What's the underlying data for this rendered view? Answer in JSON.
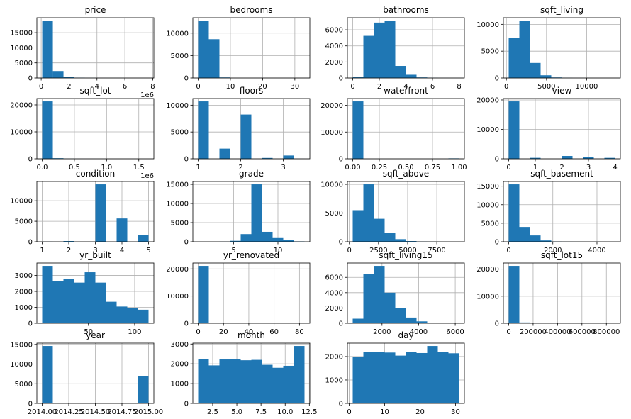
{
  "colors": {
    "bar": "#1f77b4",
    "grid": "#b0b0b0",
    "background": "#ffffff"
  },
  "chart_data": [
    {
      "type": "bar",
      "title": "price",
      "grid": true,
      "bins": {
        "min": 0.075,
        "max": 7.7,
        "count": 10
      },
      "values": [
        19000,
        2300,
        350,
        90,
        25,
        10,
        5,
        3,
        1,
        1
      ],
      "xlim": [
        -0.31,
        8.08
      ],
      "ylim": [
        0,
        19950
      ],
      "xticks": [
        0,
        2,
        4,
        6,
        8
      ],
      "xticklabels": [
        "0",
        "2",
        "4",
        "6",
        "8"
      ],
      "yticks": [
        0,
        5000,
        10000,
        15000
      ],
      "yticklabels": [
        "0",
        "5000",
        "10000",
        "15000"
      ],
      "offset_text": "1e6"
    },
    {
      "type": "bar",
      "title": "bedrooms",
      "grid": true,
      "bins": {
        "min": 0,
        "max": 33,
        "count": 10
      },
      "values": [
        12800,
        8650,
        120,
        2,
        0,
        0,
        0,
        0,
        0,
        1
      ],
      "xlim": [
        -1.65,
        34.65
      ],
      "ylim": [
        0,
        13440
      ],
      "xticks": [
        0,
        10,
        20,
        30
      ],
      "xticklabels": [
        "0",
        "10",
        "20",
        "30"
      ],
      "yticks": [
        0,
        5000,
        10000
      ],
      "yticklabels": [
        "0",
        "5000",
        "10000"
      ]
    },
    {
      "type": "bar",
      "title": "bathrooms",
      "grid": true,
      "bins": {
        "min": 0,
        "max": 8,
        "count": 10
      },
      "values": [
        85,
        5250,
        6900,
        7150,
        1500,
        400,
        70,
        20,
        5,
        2
      ],
      "xlim": [
        -0.4,
        8.4
      ],
      "ylim": [
        0,
        7508
      ],
      "xticks": [
        0,
        2,
        4,
        6,
        8
      ],
      "xticklabels": [
        "0",
        "2",
        "4",
        "6",
        "8"
      ],
      "yticks": [
        0,
        2000,
        4000,
        6000
      ],
      "yticklabels": [
        "0",
        "2000",
        "4000",
        "6000"
      ]
    },
    {
      "type": "bar",
      "title": "sqft_living",
      "grid": true,
      "bins": {
        "min": 290,
        "max": 13540,
        "count": 10
      },
      "values": [
        7500,
        10700,
        2800,
        500,
        100,
        25,
        5,
        2,
        0,
        1
      ],
      "xlim": [
        -372.5,
        14202.5
      ],
      "ylim": [
        0,
        11235
      ],
      "xticks": [
        0,
        5000,
        10000
      ],
      "xticklabels": [
        "0",
        "5000",
        "10000"
      ],
      "yticks": [
        0,
        5000,
        10000
      ],
      "yticklabels": [
        "0",
        "5000",
        "10000"
      ]
    },
    {
      "type": "bar",
      "title": "sqft_lot",
      "grid": true,
      "bins": {
        "min": 0.00052,
        "max": 1.651,
        "count": 10
      },
      "values": [
        21300,
        220,
        40,
        15,
        8,
        3,
        2,
        1,
        0,
        1
      ],
      "xlim": [
        -0.0825,
        1.734
      ],
      "ylim": [
        0,
        22365
      ],
      "xticks": [
        0,
        0.5,
        1.0,
        1.5
      ],
      "xticklabels": [
        "0.0",
        "0.5",
        "1.0",
        "1.5"
      ],
      "yticks": [
        0,
        10000,
        20000
      ],
      "yticklabels": [
        "0",
        "10000",
        "20000"
      ],
      "offset_text": "1e6"
    },
    {
      "type": "bar",
      "title": "floors",
      "grid": true,
      "bins": {
        "min": 1,
        "max": 3.5,
        "count": 10
      },
      "values": [
        10700,
        0,
        1900,
        0,
        8250,
        0,
        160,
        0,
        610,
        8
      ],
      "xlim": [
        0.875,
        3.625
      ],
      "ylim": [
        0,
        11235
      ],
      "xticks": [
        1,
        2,
        3
      ],
      "xticklabels": [
        "1",
        "2",
        "3"
      ],
      "yticks": [
        0,
        5000,
        10000
      ],
      "yticklabels": [
        "0",
        "5000",
        "10000"
      ]
    },
    {
      "type": "bar",
      "title": "waterfront",
      "grid": true,
      "bins": {
        "min": 0,
        "max": 1,
        "count": 10
      },
      "values": [
        21450,
        0,
        0,
        0,
        0,
        0,
        0,
        0,
        0,
        160
      ],
      "xlim": [
        -0.05,
        1.05
      ],
      "ylim": [
        0,
        22522
      ],
      "xticks": [
        0,
        0.25,
        0.5,
        0.75,
        1.0
      ],
      "xticklabels": [
        "0.00",
        "0.25",
        "0.50",
        "0.75",
        "1.00"
      ],
      "yticks": [
        0,
        10000,
        20000
      ],
      "yticklabels": [
        "0",
        "10000",
        "20000"
      ]
    },
    {
      "type": "bar",
      "title": "view",
      "grid": true,
      "bins": {
        "min": 0,
        "max": 4,
        "count": 10
      },
      "values": [
        19500,
        0,
        330,
        0,
        0,
        960,
        0,
        510,
        0,
        320
      ],
      "xlim": [
        -0.2,
        4.2
      ],
      "ylim": [
        0,
        20475
      ],
      "xticks": [
        0,
        1,
        2,
        3,
        4
      ],
      "xticklabels": [
        "0",
        "1",
        "2",
        "3",
        "4"
      ],
      "yticks": [
        0,
        10000,
        20000
      ],
      "yticklabels": [
        "0",
        "10000",
        "20000"
      ]
    },
    {
      "type": "bar",
      "title": "condition",
      "grid": true,
      "bins": {
        "min": 1,
        "max": 5,
        "count": 10
      },
      "values": [
        30,
        0,
        170,
        0,
        0,
        14000,
        0,
        5680,
        0,
        1700
      ],
      "xlim": [
        0.8,
        5.2
      ],
      "ylim": [
        0,
        14700
      ],
      "xticks": [
        1,
        2,
        3,
        4,
        5
      ],
      "xticklabels": [
        "1",
        "2",
        "3",
        "4",
        "5"
      ],
      "yticks": [
        0,
        5000,
        10000
      ],
      "yticklabels": [
        "0",
        "5000",
        "10000"
      ]
    },
    {
      "type": "bar",
      "title": "grade",
      "grid": true,
      "bins": {
        "min": 1,
        "max": 13,
        "count": 10
      },
      "values": [
        1,
        0,
        30,
        240,
        2000,
        15000,
        2600,
        1150,
        400,
        100
      ],
      "xlim": [
        0.4,
        13.6
      ],
      "ylim": [
        0,
        15750
      ],
      "xticks": [
        5,
        10
      ],
      "xticklabels": [
        "5",
        "10"
      ],
      "yticks": [
        0,
        5000,
        10000,
        15000
      ],
      "yticklabels": [
        "0",
        "5000",
        "10000",
        "15000"
      ]
    },
    {
      "type": "bar",
      "title": "sqft_above",
      "grid": true,
      "bins": {
        "min": 290,
        "max": 9410,
        "count": 10
      },
      "values": [
        5500,
        10000,
        4000,
        1500,
        450,
        120,
        35,
        10,
        3,
        1
      ],
      "xlim": [
        -166,
        9866
      ],
      "ylim": [
        0,
        10500
      ],
      "xticks": [
        0,
        2500,
        5000,
        7500
      ],
      "xticklabels": [
        "0",
        "2500",
        "5000",
        "7500"
      ],
      "yticks": [
        0,
        5000,
        10000
      ],
      "yticklabels": [
        "0",
        "5000",
        "10000"
      ]
    },
    {
      "type": "bar",
      "title": "sqft_basement",
      "grid": true,
      "bins": {
        "min": 0,
        "max": 4820,
        "count": 10
      },
      "values": [
        15500,
        4000,
        1700,
        350,
        60,
        15,
        5,
        2,
        1,
        1
      ],
      "xlim": [
        -241,
        5061
      ],
      "ylim": [
        0,
        16275
      ],
      "xticks": [
        0,
        2000,
        4000
      ],
      "xticklabels": [
        "0",
        "2000",
        "4000"
      ],
      "yticks": [
        0,
        5000,
        10000,
        15000
      ],
      "yticklabels": [
        "0",
        "5000",
        "10000",
        "15000"
      ]
    },
    {
      "type": "bar",
      "title": "yr_built",
      "grid": true,
      "bins": {
        "min": 0,
        "max": 115,
        "count": 10
      },
      "values": [
        3600,
        2650,
        2800,
        2550,
        3200,
        2550,
        1350,
        1050,
        950,
        850
      ],
      "xlim": [
        -5.75,
        120.75
      ],
      "ylim": [
        0,
        3780
      ],
      "xticks": [
        50,
        100
      ],
      "xticklabels": [
        "50",
        "100"
      ],
      "yticks": [
        0,
        1000,
        2000,
        3000
      ],
      "yticklabels": [
        "0",
        "1000",
        "2000",
        "3000"
      ]
    },
    {
      "type": "bar",
      "title": "yr_renovated",
      "grid": true,
      "bins": {
        "min": 0,
        "max": 84,
        "count": 10
      },
      "values": [
        21100,
        100,
        100,
        120,
        150,
        20,
        8,
        5,
        3,
        1
      ],
      "xlim": [
        -4.2,
        88.2
      ],
      "ylim": [
        0,
        22155
      ],
      "xticks": [
        0,
        20,
        40,
        60,
        80
      ],
      "xticklabels": [
        "0",
        "20",
        "40",
        "60",
        "80"
      ],
      "yticks": [
        0,
        10000,
        20000
      ],
      "yticklabels": [
        "0",
        "10000",
        "20000"
      ]
    },
    {
      "type": "bar",
      "title": "sqft_living15",
      "grid": true,
      "bins": {
        "min": 400,
        "max": 6210,
        "count": 10
      },
      "values": [
        600,
        6400,
        7500,
        4000,
        2000,
        750,
        250,
        60,
        10,
        2
      ],
      "xlim": [
        109.5,
        6500.5
      ],
      "ylim": [
        0,
        7875
      ],
      "xticks": [
        2000,
        4000,
        6000
      ],
      "xticklabels": [
        "2000",
        "4000",
        "6000"
      ],
      "yticks": [
        0,
        2000,
        4000,
        6000
      ],
      "yticklabels": [
        "0",
        "2000",
        "4000",
        "6000"
      ]
    },
    {
      "type": "bar",
      "title": "sqft_lot15",
      "grid": true,
      "bins": {
        "min": 0,
        "max": 871200,
        "count": 10
      },
      "values": [
        21200,
        300,
        60,
        20,
        8,
        3,
        1,
        1,
        0,
        1
      ],
      "xlim": [
        -43560,
        914760
      ],
      "ylim": [
        0,
        22260
      ],
      "xticks": [
        0,
        200000,
        400000,
        600000,
        800000
      ],
      "xticklabels": [
        "0",
        "200000",
        "400000",
        "600000",
        "800000"
      ],
      "yticks": [
        0,
        10000,
        20000
      ],
      "yticklabels": [
        "0",
        "10000",
        "20000"
      ]
    },
    {
      "type": "bar",
      "title": "year",
      "grid": true,
      "bins": {
        "min": 2014,
        "max": 2015,
        "count": 10
      },
      "values": [
        14600,
        0,
        0,
        0,
        0,
        0,
        0,
        0,
        0,
        7000
      ],
      "xlim": [
        2013.95,
        2015.05
      ],
      "ylim": [
        0,
        15330
      ],
      "xticks": [
        2014,
        2014.25,
        2014.5,
        2014.75,
        2015
      ],
      "xticklabels": [
        "2014.00",
        "2014.25",
        "2014.50",
        "2014.75",
        "2015.00"
      ],
      "yticks": [
        0,
        5000,
        10000,
        15000
      ],
      "yticklabels": [
        "0",
        "5000",
        "10000",
        "15000"
      ]
    },
    {
      "type": "bar",
      "title": "month",
      "grid": true,
      "bins": {
        "min": 1,
        "max": 12,
        "count": 10
      },
      "values": [
        2250,
        1920,
        2220,
        2250,
        2180,
        2200,
        1950,
        1800,
        1900,
        2900
      ],
      "xlim": [
        0.45,
        12.55
      ],
      "ylim": [
        0,
        3045
      ],
      "xticks": [
        2.5,
        5,
        7.5,
        10,
        12.5
      ],
      "xticklabels": [
        "2.5",
        "5.0",
        "7.5",
        "10.0",
        "12.5"
      ],
      "yticks": [
        0,
        1000,
        2000,
        3000
      ],
      "yticklabels": [
        "0",
        "1000",
        "2000",
        "3000"
      ]
    },
    {
      "type": "bar",
      "title": "day",
      "grid": true,
      "bins": {
        "min": 1,
        "max": 31,
        "count": 10
      },
      "values": [
        1990,
        2200,
        2200,
        2170,
        2040,
        2200,
        2150,
        2450,
        2180,
        2140
      ],
      "xlim": [
        -0.5,
        32.5
      ],
      "ylim": [
        0,
        2573
      ],
      "xticks": [
        0,
        10,
        20,
        30
      ],
      "xticklabels": [
        "0",
        "10",
        "20",
        "30"
      ],
      "yticks": [
        0,
        1000,
        2000
      ],
      "yticklabels": [
        "0",
        "1000",
        "2000"
      ]
    }
  ]
}
